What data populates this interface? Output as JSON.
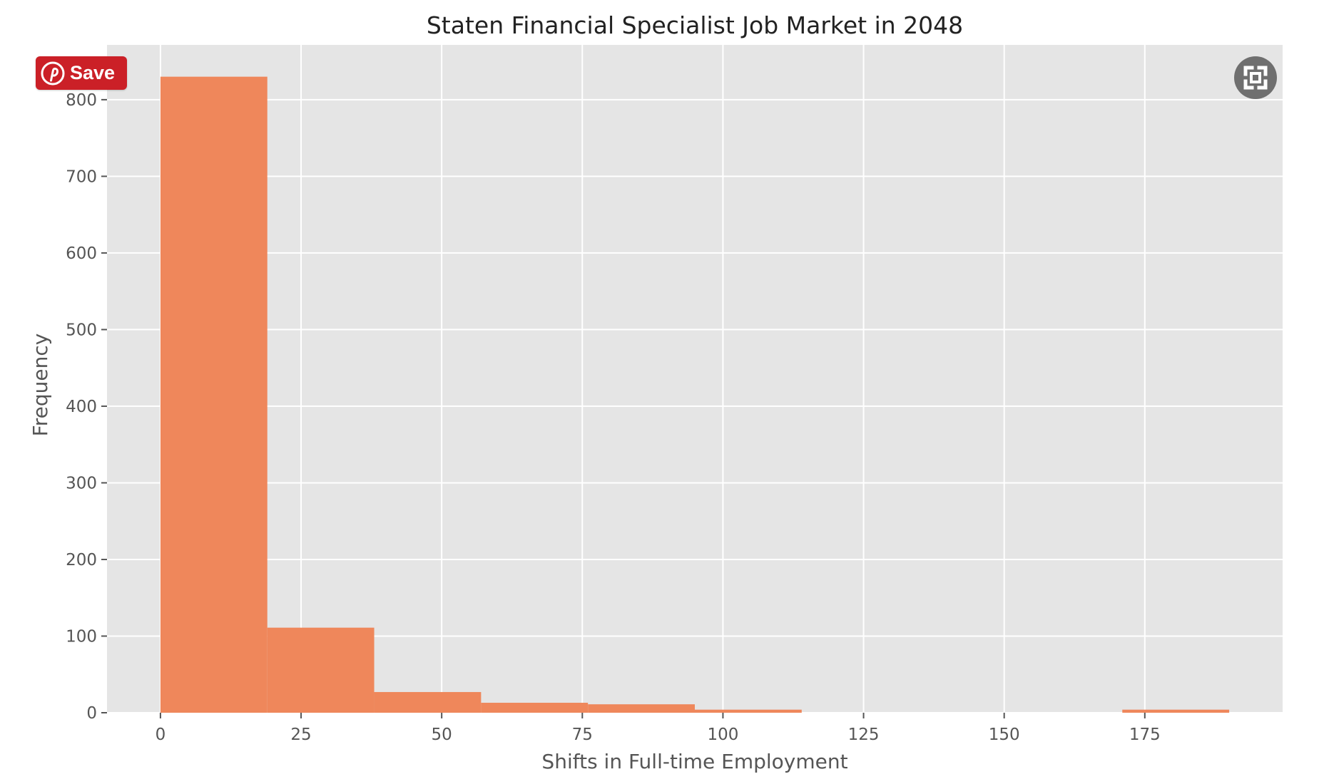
{
  "chart_data": {
    "type": "bar",
    "title": "Staten Financial Specialist Job Market in 2048",
    "xlabel": "Shifts in Full-time Employment",
    "ylabel": "Frequency",
    "bins": [
      {
        "start": 0,
        "end": 19,
        "count": 830
      },
      {
        "start": 19,
        "end": 38,
        "count": 111
      },
      {
        "start": 38,
        "end": 57,
        "count": 27
      },
      {
        "start": 57,
        "end": 76,
        "count": 13
      },
      {
        "start": 76,
        "end": 95,
        "count": 11
      },
      {
        "start": 95,
        "end": 114,
        "count": 4
      },
      {
        "start": 114,
        "end": 133,
        "count": 0
      },
      {
        "start": 133,
        "end": 152,
        "count": 0
      },
      {
        "start": 152,
        "end": 171,
        "count": 0
      },
      {
        "start": 171,
        "end": 190,
        "count": 4
      }
    ],
    "xlim": [
      -9.5,
      199.5
    ],
    "ylim": [
      0,
      871.5
    ],
    "xticks": [
      0,
      25,
      50,
      75,
      100,
      125,
      150,
      175
    ],
    "yticks": [
      0,
      100,
      200,
      300,
      400,
      500,
      600,
      700,
      800
    ],
    "grid": true,
    "bar_color": "#ef875b",
    "plot_background": "#e5e5e5",
    "grid_color": "#ffffff"
  },
  "overlay": {
    "save_label": "Save",
    "save_icon": "pinterest-icon",
    "save_color": "#cb2027",
    "fullscreen_icon": "fullscreen-icon"
  }
}
